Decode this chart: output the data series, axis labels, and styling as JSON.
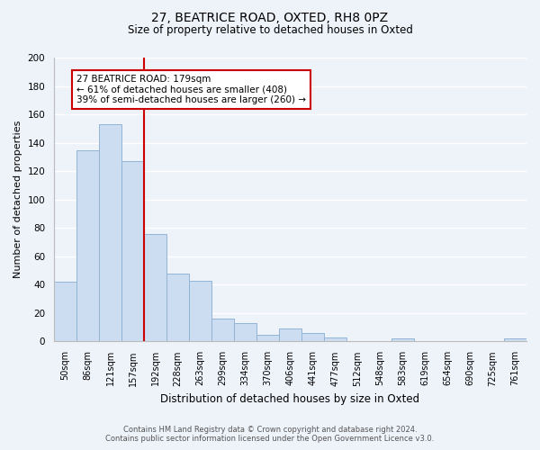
{
  "title": "27, BEATRICE ROAD, OXTED, RH8 0PZ",
  "subtitle": "Size of property relative to detached houses in Oxted",
  "xlabel": "Distribution of detached houses by size in Oxted",
  "ylabel": "Number of detached properties",
  "bar_labels": [
    "50sqm",
    "86sqm",
    "121sqm",
    "157sqm",
    "192sqm",
    "228sqm",
    "263sqm",
    "299sqm",
    "334sqm",
    "370sqm",
    "406sqm",
    "441sqm",
    "477sqm",
    "512sqm",
    "548sqm",
    "583sqm",
    "619sqm",
    "654sqm",
    "690sqm",
    "725sqm",
    "761sqm"
  ],
  "bar_values": [
    42,
    135,
    153,
    127,
    76,
    48,
    43,
    16,
    13,
    5,
    9,
    6,
    3,
    0,
    0,
    2,
    0,
    0,
    0,
    0,
    2
  ],
  "bar_color": "#ccddf2",
  "bar_edgecolor": "#92b4d4",
  "vline_after_index": 3,
  "vline_color": "#cc0000",
  "annotation_title": "27 BEATRICE ROAD: 179sqm",
  "annotation_line1": "← 61% of detached houses are smaller (408)",
  "annotation_line2": "39% of semi-detached houses are larger (260) →",
  "annotation_box_edgecolor": "#cc0000",
  "annotation_box_facecolor": "white",
  "ylim": [
    0,
    200
  ],
  "yticks": [
    0,
    20,
    40,
    60,
    80,
    100,
    120,
    140,
    160,
    180,
    200
  ],
  "footnote1": "Contains HM Land Registry data © Crown copyright and database right 2024.",
  "footnote2": "Contains public sector information licensed under the Open Government Licence v3.0.",
  "background_color": "#eef2f9",
  "grid_color": "#ffffff"
}
